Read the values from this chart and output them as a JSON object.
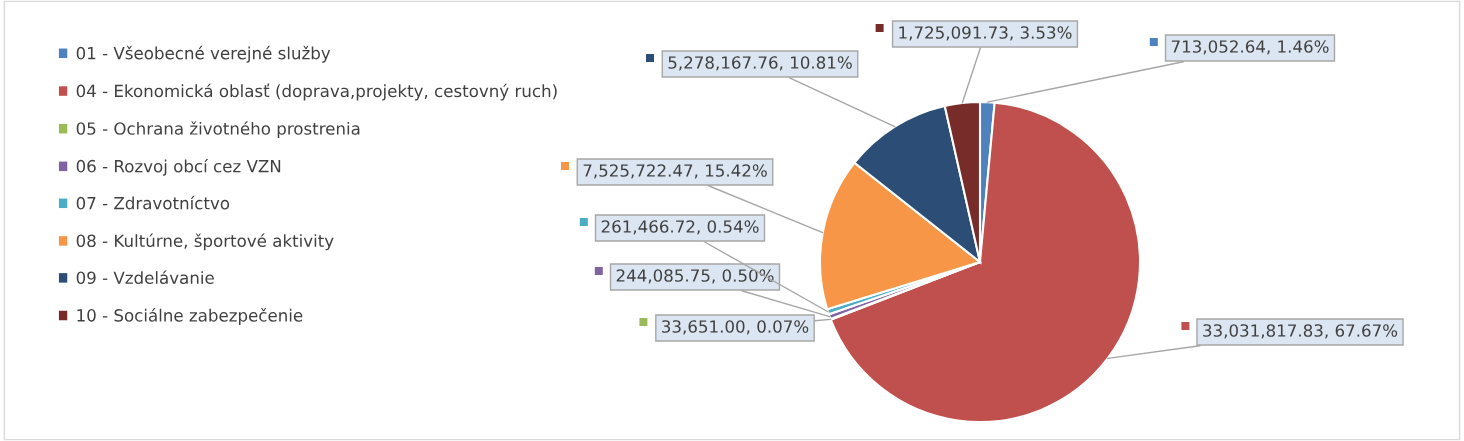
{
  "chart_data": {
    "type": "pie",
    "categories": [
      "01 - Všeobecné verejné služby",
      "04 - Ekonomická oblasť (doprava,projekty, cestovný ruch)",
      "05 - Ochrana životného prostrenia",
      "06 - Rozvoj obcí cez VZN",
      "07 - Zdravotníctvo",
      "08 - Kultúrne, športové aktivity",
      "09 - Vzdelávanie",
      "10 - Sociálne zabezpečenie"
    ],
    "values": [
      713052.64,
      33031817.83,
      33651.0,
      244085.75,
      261466.72,
      7525722.47,
      5278167.76,
      1725091.73
    ],
    "colors": [
      "#4f81bd",
      "#c0504d",
      "#9bbb59",
      "#8064a2",
      "#4bacc6",
      "#f79646",
      "#2c4d75",
      "#772c2a"
    ],
    "value_labels": [
      "713,052.64, 1.46%",
      "33,031,817.83, 67.67%",
      "33,651.00, 0.07%",
      "244,085.75, 0.50%",
      "261,466.72, 0.54%",
      "7,525,722.47, 15.42%",
      "5,278,167.76, 10.81%",
      "1,725,091.73, 3.53%"
    ],
    "legend": "left"
  }
}
